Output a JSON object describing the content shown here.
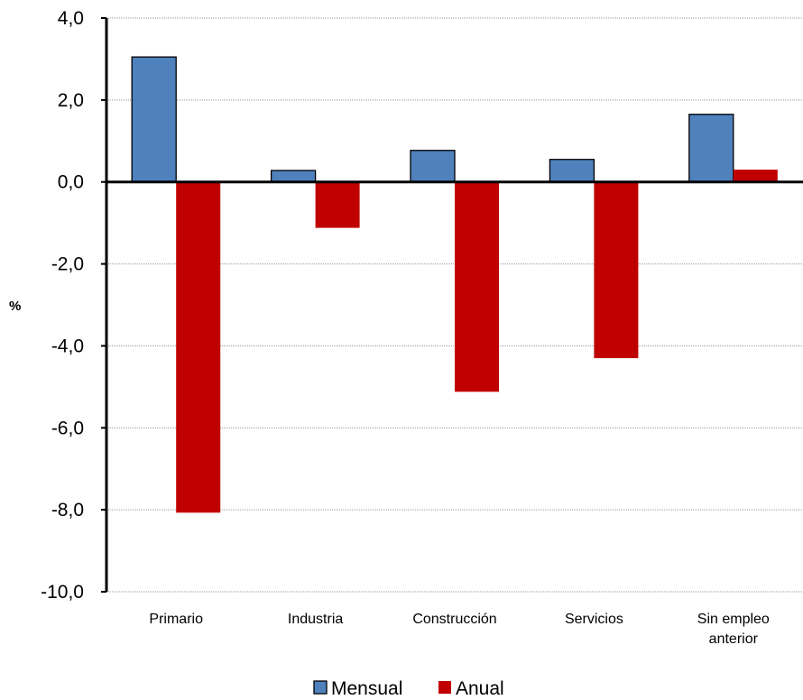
{
  "chart_data": {
    "type": "bar",
    "title": "",
    "xlabel": "",
    "ylabel": "%",
    "categories": [
      [
        "Primario"
      ],
      [
        "Industria"
      ],
      [
        "Construcción"
      ],
      [
        "Servicios"
      ],
      [
        "Sin empleo",
        "anterior"
      ]
    ],
    "series": [
      {
        "name": "Mensual",
        "color": "#4f81bd",
        "values": [
          3.05,
          0.28,
          0.77,
          0.55,
          1.65
        ]
      },
      {
        "name": "Anual",
        "color": "#c00000",
        "values": [
          -8.07,
          -1.12,
          -5.12,
          -4.3,
          0.3
        ]
      }
    ],
    "ylim": [
      -10,
      4
    ],
    "yticks": [
      4,
      2,
      0,
      -2,
      -4,
      -6,
      -8,
      -10
    ],
    "ytick_labels": [
      "4,0",
      "2,0",
      "0,0",
      "-2,0",
      "-4,0",
      "-6,0",
      "-8,0",
      "-10,0"
    ],
    "grid": true,
    "legend_position": "bottom-center"
  }
}
